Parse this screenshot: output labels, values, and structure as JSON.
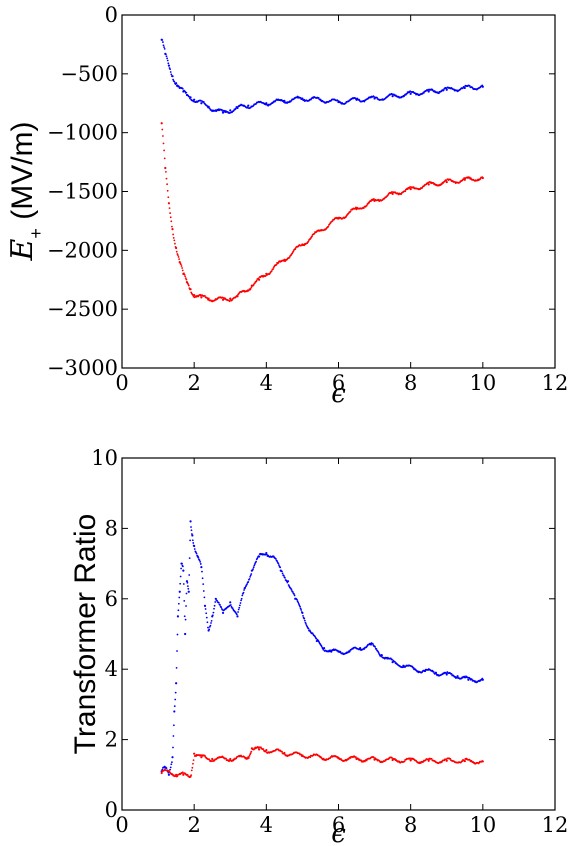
{
  "chart_data": [
    {
      "type": "scatter",
      "xlabel": "ϵ",
      "ylabel_symbol": "E",
      "ylabel_subscript": "+",
      "ylabel_unit": "(MV/m)",
      "xlim": [
        0,
        12
      ],
      "ylim": [
        -3000,
        0
      ],
      "xticks": [
        0,
        2,
        4,
        6,
        8,
        10,
        12
      ],
      "yticks": [
        -3000,
        -2500,
        -2000,
        -1500,
        -1000,
        -500,
        0
      ],
      "ytick_labels": [
        "−3000",
        "−2500",
        "−2000",
        "−1500",
        "−1000",
        "−500",
        "0"
      ],
      "series": [
        {
          "color": "#0000ff",
          "x": [
            1.1,
            1.2,
            1.3,
            1.4,
            1.5,
            1.6,
            1.7,
            1.8,
            1.9,
            2.0,
            2.2,
            2.4,
            2.6,
            2.8,
            3.0,
            3.2,
            3.5,
            4.0,
            4.5,
            5.0,
            5.5,
            6.0,
            6.5,
            7.0,
            7.5,
            8.0,
            8.5,
            9.0,
            9.5,
            10.0
          ],
          "y": [
            -210,
            -330,
            -430,
            -520,
            -580,
            -620,
            -650,
            -680,
            -700,
            -720,
            -750,
            -780,
            -810,
            -830,
            -810,
            -790,
            -770,
            -750,
            -730,
            -710,
            -720,
            -740,
            -720,
            -710,
            -690,
            -670,
            -650,
            -635,
            -620,
            -610
          ]
        },
        {
          "color": "#ff0000",
          "x": [
            1.1,
            1.2,
            1.3,
            1.4,
            1.5,
            1.6,
            1.7,
            1.8,
            1.9,
            2.0,
            2.2,
            2.4,
            2.6,
            2.8,
            3.0,
            3.2,
            3.4,
            3.6,
            3.8,
            4.0,
            4.5,
            5.0,
            5.5,
            6.0,
            6.5,
            7.0,
            7.5,
            8.0,
            8.5,
            9.0,
            9.5,
            10.0
          ],
          "y": [
            -920,
            -1300,
            -1600,
            -1820,
            -1980,
            -2100,
            -2200,
            -2270,
            -2330,
            -2380,
            -2400,
            -2410,
            -2415,
            -2420,
            -2410,
            -2390,
            -2350,
            -2300,
            -2250,
            -2200,
            -2080,
            -1950,
            -1830,
            -1730,
            -1650,
            -1580,
            -1520,
            -1480,
            -1440,
            -1420,
            -1400,
            -1385
          ]
        }
      ]
    },
    {
      "type": "scatter",
      "xlabel": "ϵ",
      "ylabel": "Transformer Ratio",
      "xlim": [
        0,
        12
      ],
      "ylim": [
        0,
        10
      ],
      "xticks": [
        0,
        2,
        4,
        6,
        8,
        10,
        12
      ],
      "yticks": [
        0,
        2,
        4,
        6,
        8,
        10
      ],
      "series": [
        {
          "color": "#0000ff",
          "x": [
            1.1,
            1.2,
            1.3,
            1.4,
            1.45,
            1.5,
            1.55,
            1.6,
            1.65,
            1.7,
            1.75,
            1.8,
            1.85,
            1.9,
            1.95,
            2.0,
            2.1,
            2.2,
            2.3,
            2.4,
            2.5,
            2.6,
            2.8,
            3.0,
            3.2,
            3.4,
            3.6,
            3.8,
            4.0,
            4.2,
            4.4,
            4.6,
            4.8,
            5.0,
            5.2,
            5.4,
            5.6,
            5.8,
            6.0,
            6.3,
            6.6,
            6.9,
            7.2,
            7.5,
            7.8,
            8.1,
            8.4,
            8.7,
            9.0,
            9.3,
            9.6,
            10.0
          ],
          "y": [
            1.1,
            1.2,
            1.0,
            1.5,
            2.8,
            3.6,
            5.5,
            6.2,
            7.0,
            6.8,
            5.0,
            6.5,
            6.2,
            8.2,
            7.8,
            7.5,
            7.2,
            6.9,
            5.8,
            5.1,
            5.5,
            6.0,
            5.6,
            5.9,
            5.5,
            6.3,
            6.8,
            7.2,
            7.3,
            7.2,
            6.8,
            6.5,
            6.0,
            5.6,
            5.1,
            4.8,
            4.6,
            4.5,
            4.5,
            4.5,
            4.6,
            4.7,
            4.4,
            4.2,
            4.1,
            4.0,
            3.95,
            3.9,
            3.85,
            3.8,
            3.7,
            3.7
          ]
        },
        {
          "color": "#ff0000",
          "x": [
            1.1,
            1.3,
            1.5,
            1.7,
            1.9,
            2.0,
            2.2,
            2.5,
            3.0,
            3.5,
            3.6,
            3.8,
            4.0,
            4.5,
            5.0,
            5.5,
            6.0,
            6.5,
            7.0,
            7.5,
            8.0,
            8.5,
            9.0,
            9.5,
            10.0
          ],
          "y": [
            1.05,
            1.1,
            1.0,
            1.0,
            0.95,
            1.6,
            1.5,
            1.45,
            1.45,
            1.5,
            1.75,
            1.72,
            1.7,
            1.62,
            1.55,
            1.5,
            1.47,
            1.45,
            1.43,
            1.42,
            1.41,
            1.4,
            1.4,
            1.39,
            1.38
          ]
        }
      ]
    }
  ]
}
